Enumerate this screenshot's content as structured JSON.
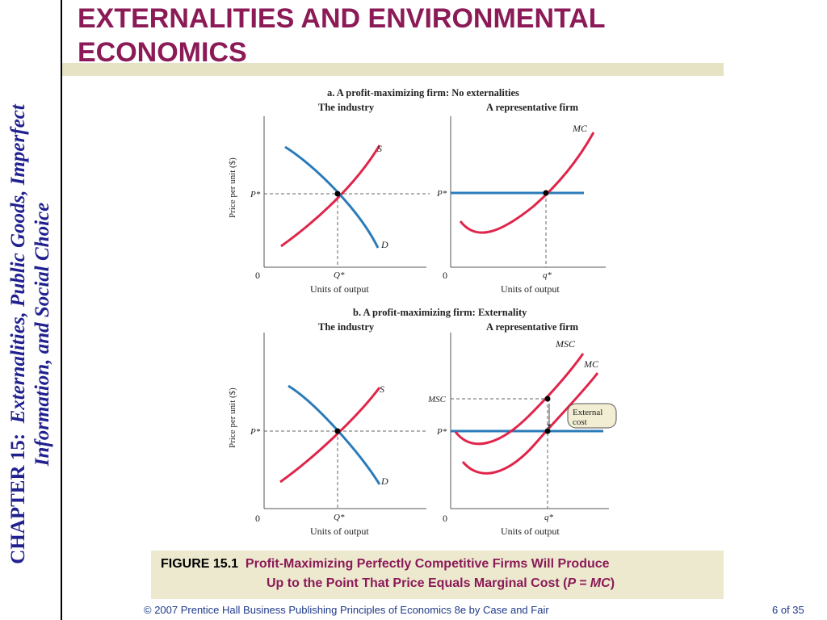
{
  "slide": {
    "title_line1": "EXTERNALITIES AND ENVIRONMENTAL",
    "title_line2": "ECONOMICS",
    "chapter_label": "CHAPTER 15:",
    "chapter_title_line1": "Externalities, Public Goods, Imperfect",
    "chapter_title_line2": "Information, and Social Choice",
    "caption_figure": "FIGURE 15.1",
    "caption_line1": "Profit-Maximizing Perfectly Competitive Firms Will Produce",
    "caption_line2_pre": "Up to the Point That Price Equals Marginal Cost (",
    "caption_line2_em": "P = MC",
    "caption_line2_post": ")",
    "footer": "© 2007 Prentice Hall Business Publishing   Principles of Economics 8e by Case and Fair",
    "page": "6 of 35"
  },
  "colors": {
    "title": "#8b1a57",
    "side": "#20208f",
    "band": "#e6e2c4",
    "caption_bg": "#ece9cf",
    "demand_price": "#2b7bb9",
    "supply_cost": "#e0254a"
  },
  "diagram": {
    "panel_a_title": "a. A profit-maximizing firm: No externalities",
    "panel_b_title": "b.  A profit-maximizing firm: Externality",
    "industry": "The industry",
    "firm": "A representative firm",
    "y_label": "Price per unit ($)",
    "x_label": "Units of output",
    "zero": "0",
    "S": "S",
    "D": "D",
    "MC": "MC",
    "MSC": "MSC",
    "P_star": "P*",
    "Q_star": "Q*",
    "q_star": "q*",
    "external_cost_1": "External",
    "external_cost_2": "cost"
  }
}
